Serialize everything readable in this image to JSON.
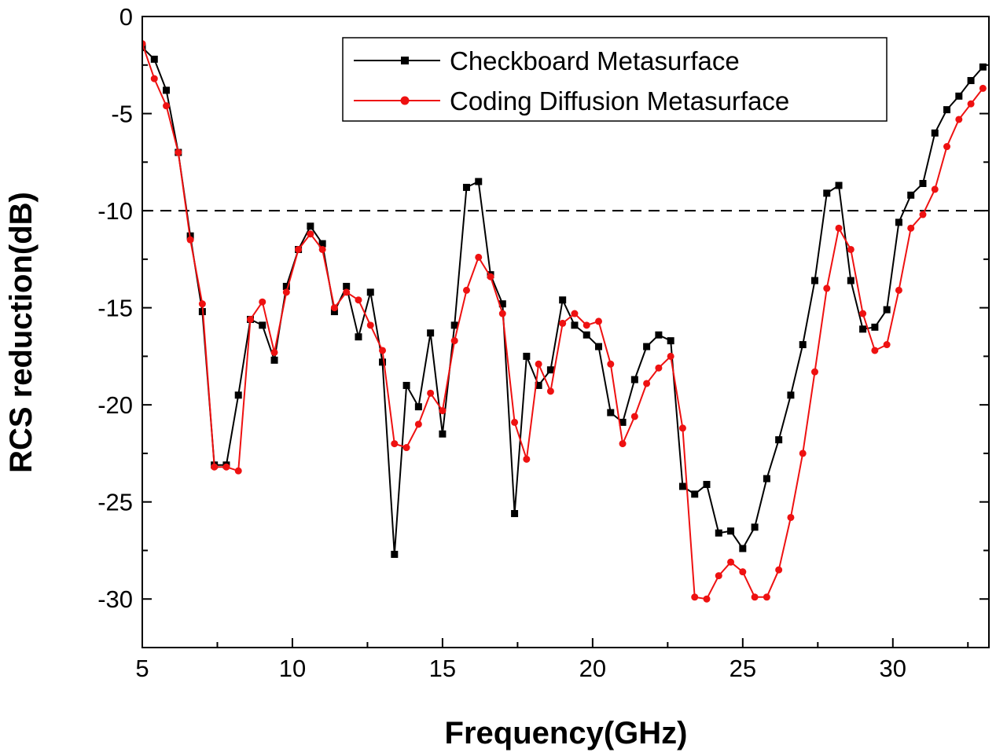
{
  "chart_data": {
    "type": "line",
    "title": "",
    "xlabel": "Frequency(GHz)",
    "ylabel": "RCS reduction(dB)",
    "xlim": [
      5,
      33.2
    ],
    "ylim": [
      -32.5,
      0
    ],
    "xticks": [
      5,
      10,
      15,
      20,
      25,
      30
    ],
    "yticks": [
      0,
      -5,
      -10,
      -15,
      -20,
      -25,
      -30
    ],
    "xtick_labels": [
      "5",
      "10",
      "15",
      "20",
      "25",
      "30"
    ],
    "ytick_labels": [
      "0",
      "-5",
      "-10",
      "-15",
      "-20",
      "-25",
      "-30"
    ],
    "reference_line": {
      "y": -10,
      "style": "dashed",
      "color": "#000000"
    },
    "legend_position": "top-right",
    "series": [
      {
        "name": "Checkboard Metasurface",
        "color": "#000000",
        "marker": "square",
        "x": [
          5,
          5.4,
          5.8,
          6.2,
          6.6,
          7.0,
          7.4,
          7.8,
          8.2,
          8.6,
          9.0,
          9.4,
          9.8,
          10.2,
          10.6,
          11.0,
          11.4,
          11.8,
          12.2,
          12.6,
          13.0,
          13.4,
          13.8,
          14.2,
          14.6,
          15.0,
          15.4,
          15.8,
          16.2,
          16.6,
          17.0,
          17.4,
          17.8,
          18.2,
          18.6,
          19.0,
          19.4,
          19.8,
          20.2,
          20.6,
          21.0,
          21.4,
          21.8,
          22.2,
          22.6,
          23.0,
          23.4,
          23.8,
          24.2,
          24.6,
          25.0,
          25.4,
          25.8,
          26.2,
          26.6,
          27.0,
          27.4,
          27.8,
          28.2,
          28.6,
          29.0,
          29.4,
          29.8,
          30.2,
          30.6,
          31.0,
          31.4,
          31.8,
          32.2,
          32.6,
          33.0
        ],
        "y": [
          -1.6,
          -2.2,
          -3.8,
          -7.0,
          -11.3,
          -15.2,
          -23.1,
          -23.1,
          -19.5,
          -15.6,
          -15.9,
          -17.7,
          -13.9,
          -12.0,
          -10.8,
          -11.7,
          -15.2,
          -13.9,
          -16.5,
          -14.2,
          -17.8,
          -27.7,
          -19.0,
          -20.1,
          -16.3,
          -21.5,
          -15.9,
          -8.8,
          -8.5,
          -13.3,
          -14.8,
          -25.6,
          -17.5,
          -19.0,
          -18.2,
          -14.6,
          -15.9,
          -16.4,
          -17.0,
          -20.4,
          -20.9,
          -18.7,
          -17.0,
          -16.4,
          -16.7,
          -24.2,
          -24.6,
          -24.1,
          -26.6,
          -26.5,
          -27.4,
          -26.3,
          -23.8,
          -21.8,
          -19.5,
          -16.9,
          -13.6,
          -9.1,
          -8.7,
          -13.6,
          -16.1,
          -16.0,
          -15.1,
          -10.6,
          -9.2,
          -8.6,
          -6.0,
          -4.8,
          -4.1,
          -3.3,
          -2.6
        ]
      },
      {
        "name": "Coding Diffusion Metasurface",
        "color": "#ee1111",
        "marker": "circle",
        "x": [
          5,
          5.4,
          5.8,
          6.2,
          6.6,
          7.0,
          7.4,
          7.8,
          8.2,
          8.6,
          9.0,
          9.4,
          9.8,
          10.2,
          10.6,
          11.0,
          11.4,
          11.8,
          12.2,
          12.6,
          13.0,
          13.4,
          13.8,
          14.2,
          14.6,
          15.0,
          15.4,
          15.8,
          16.2,
          16.6,
          17.0,
          17.4,
          17.8,
          18.2,
          18.6,
          19.0,
          19.4,
          19.8,
          20.2,
          20.6,
          21.0,
          21.4,
          21.8,
          22.2,
          22.6,
          23.0,
          23.4,
          23.8,
          24.2,
          24.6,
          25.0,
          25.4,
          25.8,
          26.2,
          26.6,
          27.0,
          27.4,
          27.8,
          28.2,
          28.6,
          29.0,
          29.4,
          29.8,
          30.2,
          30.6,
          31.0,
          31.4,
          31.8,
          32.2,
          32.6,
          33.0
        ],
        "y": [
          -1.4,
          -3.2,
          -4.6,
          -7.0,
          -11.5,
          -14.8,
          -23.2,
          -23.2,
          -23.4,
          -15.6,
          -14.7,
          -17.3,
          -14.2,
          -12.0,
          -11.2,
          -12.0,
          -15.0,
          -14.2,
          -14.6,
          -15.9,
          -17.2,
          -22.0,
          -22.2,
          -21.0,
          -19.4,
          -20.3,
          -16.7,
          -14.1,
          -12.4,
          -13.4,
          -15.3,
          -20.9,
          -22.8,
          -17.9,
          -19.3,
          -15.8,
          -15.3,
          -15.9,
          -15.7,
          -17.9,
          -22.0,
          -20.6,
          -18.9,
          -18.1,
          -17.5,
          -21.2,
          -29.9,
          -30.0,
          -28.8,
          -28.1,
          -28.6,
          -29.9,
          -29.9,
          -28.5,
          -25.8,
          -22.5,
          -18.3,
          -14.0,
          -10.9,
          -12.0,
          -15.3,
          -17.2,
          -16.9,
          -14.1,
          -10.9,
          -10.2,
          -8.9,
          -6.7,
          -5.3,
          -4.5,
          -3.7
        ]
      }
    ]
  }
}
